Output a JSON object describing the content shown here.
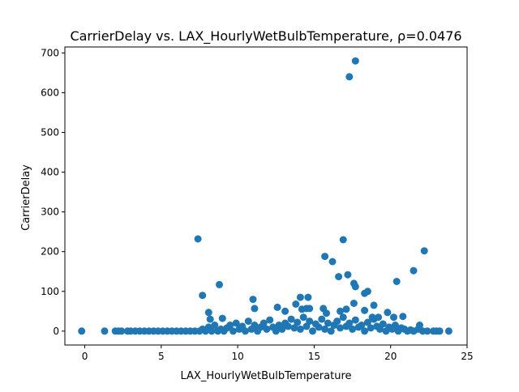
{
  "chart_data": {
    "type": "scatter",
    "title": "CarrierDelay vs. LAX_HourlyWetBulbTemperature, ρ=0.0476",
    "xlabel": "LAX_HourlyWetBulbTemperature",
    "ylabel": "CarrierDelay",
    "xlim": [
      -1.3,
      25
    ],
    "ylim": [
      -35,
      715
    ],
    "x_ticks": [
      0,
      5,
      10,
      15,
      20,
      25
    ],
    "y_ticks": [
      0,
      100,
      200,
      300,
      400,
      500,
      600,
      700
    ],
    "grid": false,
    "color": "#1f77b4",
    "points": [
      [
        -0.2,
        0
      ],
      [
        1.3,
        0
      ],
      [
        2.0,
        0
      ],
      [
        2.2,
        0
      ],
      [
        2.4,
        0
      ],
      [
        2.8,
        0
      ],
      [
        3.0,
        0
      ],
      [
        3.3,
        0
      ],
      [
        3.6,
        0
      ],
      [
        3.9,
        0
      ],
      [
        4.2,
        0
      ],
      [
        4.5,
        0
      ],
      [
        4.8,
        0
      ],
      [
        5.1,
        0
      ],
      [
        5.4,
        0
      ],
      [
        5.7,
        0
      ],
      [
        6.0,
        0
      ],
      [
        6.3,
        0
      ],
      [
        6.6,
        0
      ],
      [
        6.9,
        0
      ],
      [
        7.2,
        0
      ],
      [
        7.5,
        0
      ],
      [
        7.7,
        5
      ],
      [
        7.9,
        0
      ],
      [
        8.1,
        10
      ],
      [
        8.3,
        0
      ],
      [
        8.5,
        15
      ],
      [
        8.7,
        0
      ],
      [
        8.9,
        5
      ],
      [
        9.1,
        0
      ],
      [
        9.3,
        8
      ],
      [
        9.5,
        15
      ],
      [
        9.7,
        0
      ],
      [
        9.9,
        20
      ],
      [
        10.1,
        5
      ],
      [
        10.3,
        12
      ],
      [
        10.5,
        0
      ],
      [
        10.7,
        25
      ],
      [
        10.9,
        5
      ],
      [
        11.1,
        15
      ],
      [
        11.3,
        0
      ],
      [
        11.5,
        10
      ],
      [
        11.7,
        20
      ],
      [
        11.9,
        5
      ],
      [
        12.1,
        28
      ],
      [
        12.3,
        10
      ],
      [
        12.5,
        0
      ],
      [
        12.7,
        15
      ],
      [
        12.9,
        5
      ],
      [
        13.1,
        20
      ],
      [
        13.3,
        12
      ],
      [
        13.5,
        30
      ],
      [
        13.7,
        8
      ],
      [
        13.9,
        22
      ],
      [
        14.1,
        5
      ],
      [
        14.3,
        35
      ],
      [
        14.5,
        12
      ],
      [
        14.7,
        25
      ],
      [
        14.9,
        0
      ],
      [
        15.1,
        18
      ],
      [
        15.3,
        10
      ],
      [
        15.5,
        30
      ],
      [
        15.7,
        5
      ],
      [
        15.9,
        20
      ],
      [
        16.1,
        0
      ],
      [
        16.3,
        15
      ],
      [
        16.5,
        25
      ],
      [
        16.7,
        8
      ],
      [
        16.9,
        35
      ],
      [
        17.1,
        12
      ],
      [
        17.3,
        20
      ],
      [
        17.5,
        5
      ],
      [
        17.7,
        28
      ],
      [
        17.9,
        10
      ],
      [
        18.1,
        15
      ],
      [
        18.3,
        0
      ],
      [
        18.5,
        22
      ],
      [
        18.7,
        8
      ],
      [
        18.9,
        30
      ],
      [
        19.1,
        12
      ],
      [
        19.3,
        5
      ],
      [
        19.5,
        18
      ],
      [
        19.7,
        0
      ],
      [
        19.9,
        10
      ],
      [
        20.1,
        5
      ],
      [
        20.3,
        15
      ],
      [
        20.5,
        0
      ],
      [
        20.7,
        8
      ],
      [
        20.9,
        5
      ],
      [
        21.1,
        0
      ],
      [
        21.3,
        3
      ],
      [
        21.5,
        0
      ],
      [
        21.8,
        5
      ],
      [
        22.1,
        0
      ],
      [
        22.4,
        0
      ],
      [
        22.8,
        0
      ],
      [
        23.0,
        0
      ],
      [
        23.2,
        0
      ],
      [
        23.8,
        0
      ],
      [
        7.4,
        232
      ],
      [
        7.7,
        90
      ],
      [
        8.1,
        47
      ],
      [
        8.2,
        30
      ],
      [
        8.8,
        117
      ],
      [
        9.0,
        32
      ],
      [
        11.0,
        80
      ],
      [
        11.1,
        57
      ],
      [
        12.6,
        60
      ],
      [
        13.1,
        50
      ],
      [
        13.8,
        68
      ],
      [
        14.1,
        85
      ],
      [
        14.2,
        55
      ],
      [
        14.5,
        57
      ],
      [
        14.6,
        85
      ],
      [
        14.7,
        57
      ],
      [
        15.6,
        57
      ],
      [
        15.7,
        188
      ],
      [
        15.8,
        45
      ],
      [
        16.2,
        175
      ],
      [
        16.6,
        137
      ],
      [
        16.7,
        50
      ],
      [
        16.9,
        230
      ],
      [
        17.1,
        55
      ],
      [
        17.2,
        142
      ],
      [
        17.3,
        640
      ],
      [
        17.6,
        120
      ],
      [
        17.6,
        70
      ],
      [
        17.7,
        680
      ],
      [
        17.7,
        112
      ],
      [
        18.3,
        52
      ],
      [
        18.3,
        95
      ],
      [
        18.5,
        100
      ],
      [
        18.9,
        65
      ],
      [
        18.8,
        35
      ],
      [
        19.2,
        35
      ],
      [
        19.8,
        47
      ],
      [
        20.2,
        35
      ],
      [
        20.4,
        125
      ],
      [
        20.8,
        37
      ],
      [
        21.5,
        152
      ],
      [
        21.9,
        15
      ],
      [
        22.2,
        202
      ]
    ]
  }
}
